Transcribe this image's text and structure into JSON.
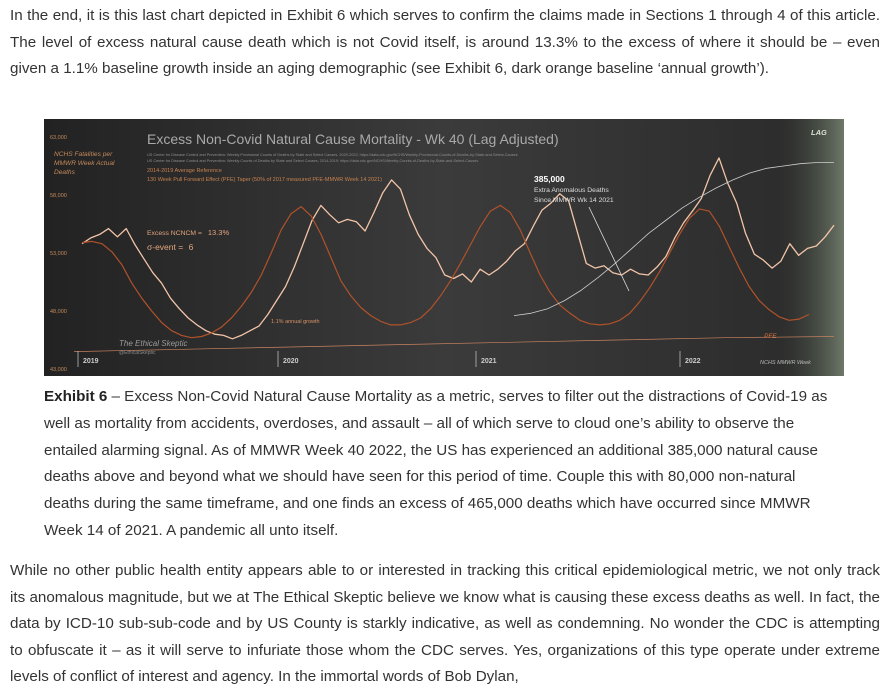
{
  "article": {
    "paragraph1": "In the end, it is this last chart depicted in Exhibit 6 which serves to confirm the claims made in Sections 1 through 4 of this article. The level of excess natural cause death which is not Covid itself, is around 13.3% to the excess of where it should be – even given a 1.1% baseline growth inside an aging demographic (see Exhibit 6, dark orange baseline ‘annual growth’).",
    "caption_label": "Exhibit 6",
    "caption_text": " – Excess Non-Covid Natural Cause Mortality as a metric, serves to filter out the distractions of Covid-19 as well as mortality from accidents, overdoses, and assault – all of which serve to cloud one’s ability to observe the entailed alarming signal. As of MMWR Week 40 2022, the US has experienced an additional 385,000 natural cause deaths above and beyond what we should have seen for this period of time. Couple this with 80,000 non-natural deaths during the same timeframe, and one finds an excess of 465,000 deaths which have occurred since MMWR Week 14 of 2021. A pandemic all unto itself.",
    "paragraph2": "While no other public health entity appears able to or interested in tracking this critical epidemiological metric, we not only track its anomalous magnitude, but we at The Ethical Skeptic believe we know what is causing these excess deaths as well. In fact, the data by ICD-10 sub-sub-code and by US County is starkly indicative, as well as condemning. No wonder the CDC is attempting to obfuscate it – as it will serve to infuriate those whom the CDC serves. Yes, organizations of this type operate under extreme levels of conflict of interest and agency. In the immortal words of Bob Dylan,"
  },
  "chart_data": {
    "type": "line",
    "title": "Excess Non-Covid Natural Cause Mortality - Wk 40 (Lag Adjusted)",
    "source_line1": "US Center for Disease Control and Prevention: Weekly Provisional Counts of Deaths by State and Select Causes, 2020-2022; https://data.cdc.gov/NCHS/Weekly-Provisional-Counts-of-Deaths-by-State-and-Select-Causes",
    "source_line2": "US Center for Disease Control and Prevention: Weekly Counts of Deaths by State and Select Causes, 2014-2019; https://data.cdc.gov/NCHS/Weekly-Counts-of-Deaths-by-State-and-Select-Causes",
    "legend_avg": "2014-2019 Average Reference",
    "legend_pfe": "130 Week Pull Forward Effect (PFE) Taper (50% of 2017 measured PFE-MMWR Week 14 2021)",
    "ylabel": "NCHS Fatalities per MMWR Week Actual Deaths",
    "y_ticks": [
      "63,000",
      "58,000",
      "53,000",
      "48,000",
      "43,000"
    ],
    "ylim": [
      43000,
      63000
    ],
    "x_ticks": [
      "2019",
      "2020",
      "2021",
      "2022"
    ],
    "xlabel": "NCHS MMWR Week",
    "annotation_excess_label": "Excess NCNCM = ",
    "annotation_excess_value": "13.3%",
    "annotation_sigma_label": "σ-event = ",
    "annotation_sigma_value": "6",
    "annotation_total_value": "385,000",
    "annotation_total_line2": "Extra Anomalous Deaths",
    "annotation_total_line3": "Since MMWR Wk 14 2021",
    "annotation_growth": "1.1% annual growth",
    "annotation_pfe": "PFE",
    "annotation_lag": "LAG",
    "watermark_line1": "The Ethical Skeptic",
    "watermark_line2": "@EthicalSkeptic",
    "series": [
      {
        "name": "Actual",
        "color": "#f2c4a8",
        "y": [
          53800,
          54300,
          54600,
          55100,
          54400,
          55100,
          53700,
          52500,
          51300,
          50400,
          49100,
          48200,
          47400,
          46800,
          46300,
          46000,
          45900,
          45600,
          45900,
          46300,
          46700,
          47700,
          48900,
          50100,
          51800,
          53800,
          55800,
          57100,
          56300,
          55600,
          55900,
          55700,
          54900,
          56500,
          58200,
          59300,
          58500,
          56300,
          54600,
          53400,
          52600,
          51100,
          50800,
          51200,
          50500,
          51600,
          51100,
          51600,
          52300,
          53200,
          53800,
          55300,
          56700,
          57300,
          58100,
          57500,
          54800,
          52100,
          51700,
          51900,
          51300,
          51100,
          51600,
          51200,
          51100,
          51800,
          52700,
          54300,
          55600,
          56600,
          57700,
          59700,
          61200,
          59000,
          57300,
          54700,
          52900,
          52400,
          51700,
          52300,
          53800,
          52800,
          53400,
          53600,
          54400,
          55400
        ]
      },
      {
        "name": "Average Reference",
        "color": "#b0522a",
        "y": [
          53900,
          54000,
          53800,
          53100,
          52000,
          50400,
          49100,
          48000,
          47000,
          46300,
          45900,
          45700,
          45800,
          46100,
          46600,
          47400,
          48400,
          49600,
          51100,
          53000,
          55000,
          56400,
          57000,
          56200,
          54600,
          52600,
          50600,
          49300,
          48300,
          47600,
          47100,
          46800,
          46800,
          47000,
          47400,
          48200,
          49300,
          50600,
          52100,
          53700,
          55300,
          56600,
          57100,
          56500,
          55000,
          53000,
          51100,
          49600,
          48500,
          47800,
          47200,
          46900,
          46800,
          46900,
          47200,
          47800,
          48800,
          50000,
          51400,
          53000,
          54600,
          56000,
          56800,
          56600,
          55300,
          53500,
          51700,
          50100,
          48900,
          48100,
          47500,
          47200,
          47300,
          47700
        ]
      },
      {
        "name": "Cumulative Excess",
        "color": "#cfcfcf",
        "y": [
          47600,
          47800,
          48200,
          48900,
          49800,
          50900,
          52100,
          53400,
          54700,
          55800,
          56900,
          57800,
          58600,
          59300,
          59900,
          60300,
          60500,
          60700,
          60800,
          60800
        ]
      },
      {
        "name": "Annual Growth Baseline",
        "color": "#c98260",
        "y": [
          44500,
          44700,
          44900,
          45100,
          45300,
          45500,
          45700,
          45800
        ]
      }
    ]
  }
}
